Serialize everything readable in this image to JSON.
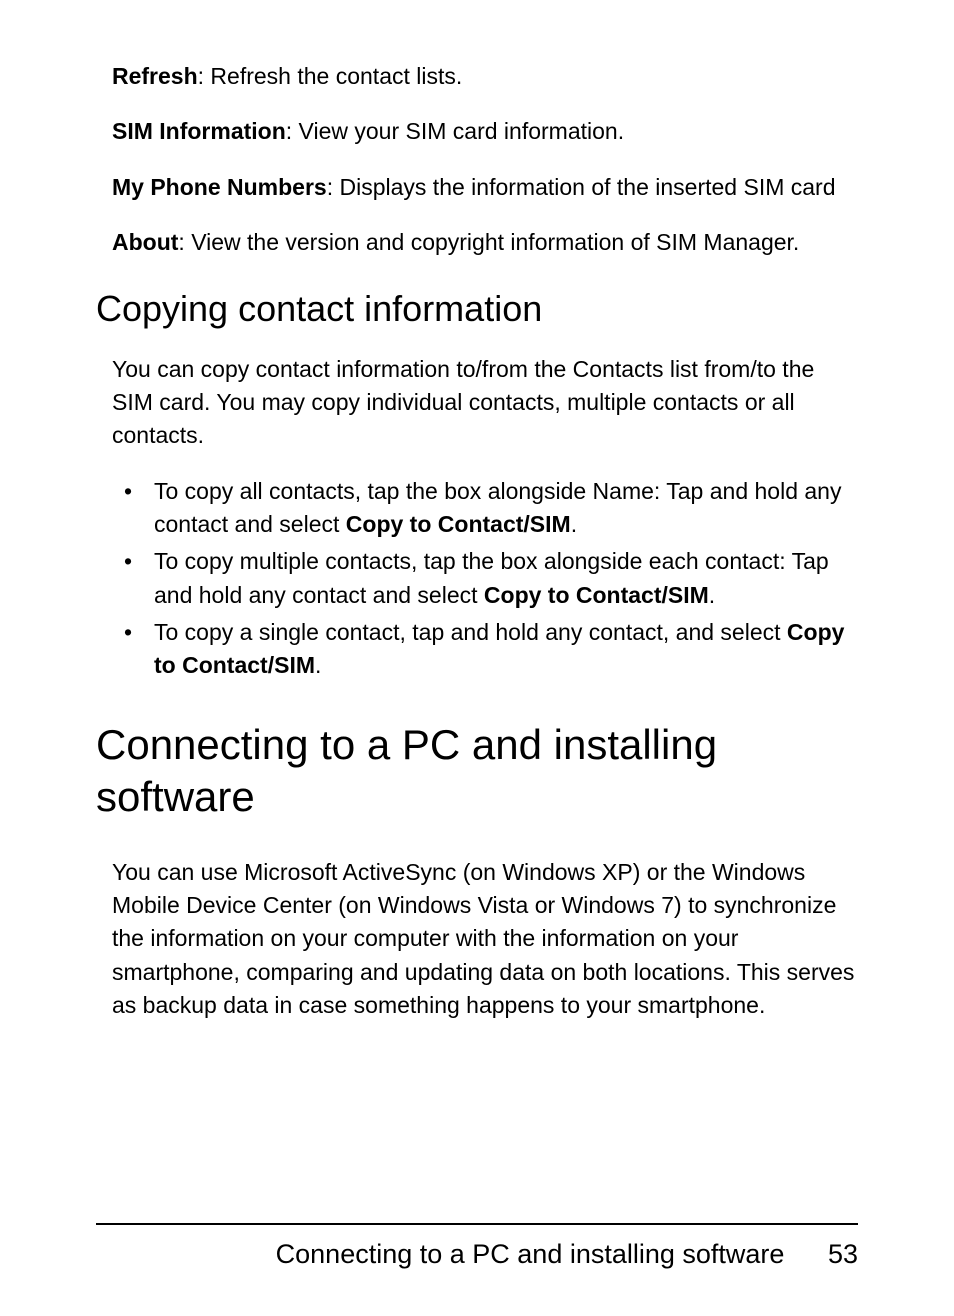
{
  "definitions": [
    {
      "term": "Refresh",
      "desc": ": Refresh the contact lists."
    },
    {
      "term": "SIM Information",
      "desc": ": View your SIM card information."
    },
    {
      "term": "My Phone Numbers",
      "desc": ": Displays the information of the inserted SIM card"
    },
    {
      "term": "About",
      "desc": ": View the version and copyright information of SIM Manager."
    }
  ],
  "section1": {
    "heading": "Copying contact information",
    "intro": "You can copy contact information to/from the Contacts list from/to the SIM card. You may copy individual contacts, multiple contacts or all contacts.",
    "bullets": [
      {
        "pre": "To copy all contacts, tap the box alongside Name: Tap and hold any contact and select ",
        "bold": "Copy to Contact/SIM",
        "post": "."
      },
      {
        "pre": "To copy multiple contacts, tap the box alongside each contact: Tap and hold any contact and select ",
        "bold": "Copy to Contact/SIM",
        "post": "."
      },
      {
        "pre": "To copy a single contact, tap and hold any contact, and select ",
        "bold": "Copy to Contact/SIM",
        "post": "."
      }
    ]
  },
  "section2": {
    "heading": "Connecting to a PC and installing software",
    "body": "You can use Microsoft ActiveSync (on Windows XP) or the Windows Mobile Device Center (on Windows Vista or Windows 7) to synchronize the information on your computer with the information on your smartphone, comparing and updating data on both locations. This serves as backup data in case something happens to your smartphone."
  },
  "footer": {
    "title": "Connecting to a PC and installing software",
    "page": "53"
  },
  "colors": {
    "text": "#000000",
    "background": "#ffffff",
    "rule": "#000000"
  },
  "typography": {
    "body_fontsize": 23,
    "h2_fontsize": 36,
    "h1_fontsize": 42,
    "footer_fontsize": 27,
    "font_family": "Segoe UI, Tahoma, Arial, sans-serif"
  }
}
